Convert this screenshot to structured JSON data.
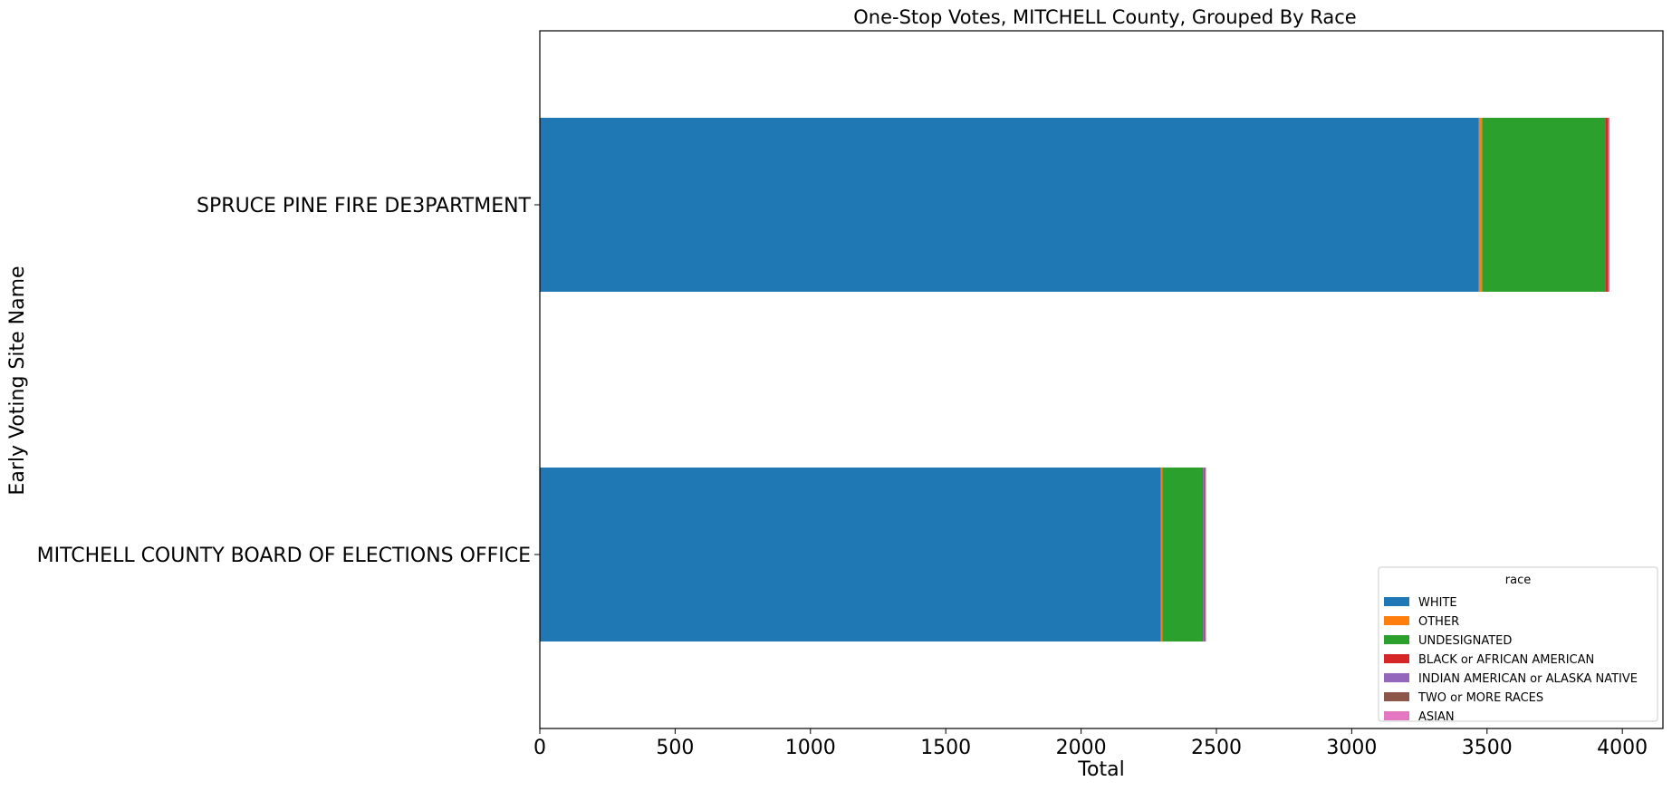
{
  "chart_data": {
    "type": "bar",
    "orientation": "horizontal",
    "stacked": true,
    "title": "One-Stop Votes, MITCHELL County, Grouped By Race",
    "xlabel": "Total",
    "ylabel": "Early Voting Site Name",
    "xlim": [
      0,
      4150
    ],
    "xticks": [
      0,
      500,
      1000,
      1500,
      2000,
      2500,
      3000,
      3500,
      4000
    ],
    "grid": false,
    "legend": {
      "title": "race",
      "placement": "lower-right"
    },
    "categories": [
      "MITCHELL COUNTY BOARD OF ELECTIONS OFFICE",
      "SPRUCE PINE FIRE DE3PARTMENT"
    ],
    "series": [
      {
        "name": "WHITE",
        "color": "#1f77b4",
        "values": [
          2295,
          3470
        ]
      },
      {
        "name": "OTHER",
        "color": "#ff7f0e",
        "values": [
          5,
          12
        ]
      },
      {
        "name": "UNDESIGNATED",
        "color": "#2ca02c",
        "values": [
          148,
          455
        ]
      },
      {
        "name": "BLACK or AFRICAN AMERICAN",
        "color": "#d62728",
        "values": [
          2,
          9
        ]
      },
      {
        "name": "INDIAN AMERICAN or ALASKA NATIVE",
        "color": "#9467bd",
        "values": [
          3,
          2
        ]
      },
      {
        "name": "TWO or MORE RACES",
        "color": "#8c564b",
        "values": [
          6,
          3
        ]
      },
      {
        "name": "ASIAN",
        "color": "#e377c2",
        "values": [
          3,
          1
        ]
      }
    ]
  }
}
